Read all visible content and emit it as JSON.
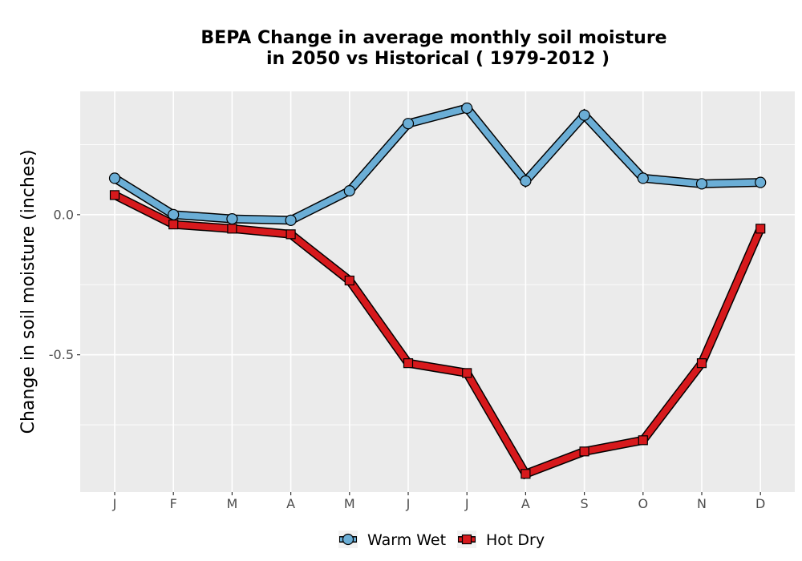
{
  "chart_data": {
    "type": "line",
    "title_lines": [
      "BEPA  Change in average monthly soil moisture",
      "in 2050 vs Historical ( 1979-2012 )"
    ],
    "xlabel": "",
    "ylabel": "Change in soil moisture (inches)",
    "categories": [
      "J",
      "F",
      "M",
      "A",
      "M",
      "J",
      "J",
      "A",
      "S",
      "O",
      "N",
      "D"
    ],
    "ylim": [
      -0.99,
      0.44
    ],
    "yticks": [
      0.0,
      -0.5
    ],
    "ytick_labels": [
      "0.0",
      "-0.5"
    ],
    "grid": true,
    "legend_position": "bottom",
    "series": [
      {
        "name": "Warm Wet",
        "color": "#6baed6",
        "marker": "circle",
        "values": [
          0.13,
          0.0,
          -0.015,
          -0.02,
          0.085,
          0.325,
          0.38,
          0.12,
          0.355,
          0.13,
          0.11,
          0.115
        ]
      },
      {
        "name": "Hot Dry",
        "color": "#d7191c",
        "marker": "square",
        "values": [
          0.07,
          -0.035,
          -0.05,
          -0.07,
          -0.235,
          -0.53,
          -0.565,
          -0.925,
          -0.845,
          -0.805,
          -0.53,
          -0.05
        ]
      }
    ]
  }
}
